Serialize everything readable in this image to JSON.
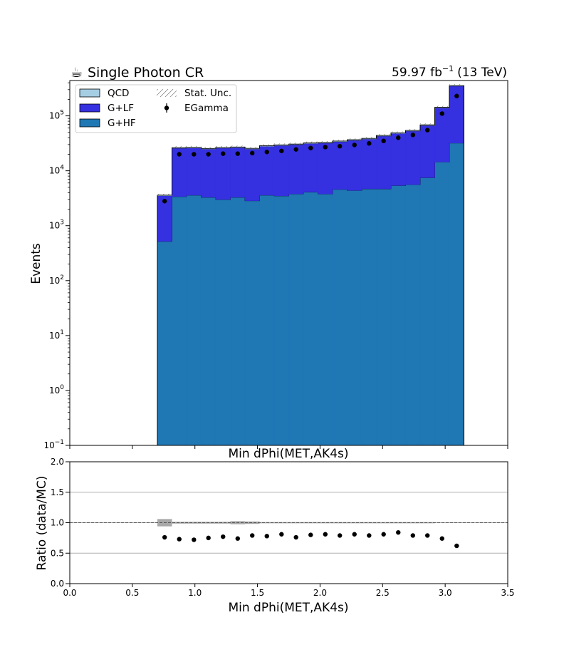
{
  "header": {
    "left_title": "Single Photon CR",
    "left_icon": "coffee-icon",
    "lumi_value": "59.97",
    "lumi_unit_base": "fb",
    "lumi_unit_sup": "−1",
    "energy": "(13 TeV)"
  },
  "chart_data": [
    {
      "type": "bar",
      "stacked": true,
      "xlabel": "Min dPhi(MET,AK4s)",
      "ylabel": "Events",
      "yscale": "log",
      "xlim": [
        0.0,
        3.5
      ],
      "ylim": [
        0.1,
        440000
      ],
      "y_ticks": [
        {
          "value": 0.1,
          "base": "10",
          "exp": "−1"
        },
        {
          "value": 1,
          "base": "10",
          "exp": "0"
        },
        {
          "value": 10,
          "base": "10",
          "exp": "1"
        },
        {
          "value": 100,
          "base": "10",
          "exp": "2"
        },
        {
          "value": 1000,
          "base": "10",
          "exp": "3"
        },
        {
          "value": 10000,
          "base": "10",
          "exp": "4"
        },
        {
          "value": 100000,
          "base": "10",
          "exp": "5"
        }
      ],
      "x_tick_values": [
        0.0,
        0.5,
        1.0,
        1.5,
        2.0,
        2.5,
        3.0,
        3.5
      ],
      "bin_edges": [
        0.7,
        0.8167,
        0.9333,
        1.05,
        1.1667,
        1.2833,
        1.4,
        1.5167,
        1.6333,
        1.75,
        1.8667,
        1.9833,
        2.1,
        2.2167,
        2.3333,
        2.45,
        2.5667,
        2.6833,
        2.8,
        2.9167,
        3.0333,
        3.15
      ],
      "series": [
        {
          "name": "G+HF",
          "color": "#1f77b4",
          "values": [
            520,
            3400,
            3600,
            3300,
            3000,
            3300,
            2850,
            3600,
            3500,
            3800,
            4100,
            3800,
            4600,
            4400,
            4700,
            4700,
            5400,
            5600,
            7500,
            14500,
            32000
          ]
        },
        {
          "name": "G+LF",
          "color": "#3530e0",
          "values": [
            3000,
            22500,
            22500,
            21700,
            23000,
            23200,
            22150,
            24400,
            25500,
            26200,
            27400,
            28200,
            29400,
            31600,
            33300,
            38300,
            42600,
            47400,
            59500,
            125500,
            318000
          ]
        },
        {
          "name": "QCD",
          "color": "#a6cee3",
          "values": [
            80,
            500,
            600,
            500,
            600,
            600,
            600,
            600,
            600,
            600,
            700,
            700,
            800,
            800,
            900,
            1000,
            1000,
            1200,
            1500,
            3000,
            6000
          ]
        }
      ],
      "data_points": {
        "name": "EGamma",
        "x": [
          0.758,
          0.875,
          0.992,
          1.108,
          1.225,
          1.342,
          1.458,
          1.575,
          1.692,
          1.808,
          1.925,
          2.042,
          2.158,
          2.275,
          2.392,
          2.508,
          2.625,
          2.742,
          2.858,
          2.975,
          3.092
        ],
        "y": [
          2800,
          20000,
          20000,
          20000,
          20500,
          20500,
          21000,
          22000,
          23000,
          24500,
          26000,
          27000,
          28000,
          29500,
          31500,
          35000,
          40000,
          45000,
          55000,
          110000,
          230000
        ]
      },
      "legend": {
        "placement": "top-left",
        "entries": [
          "QCD",
          "G+LF",
          "G+HF",
          "Stat. Unc.",
          "EGamma"
        ]
      }
    },
    {
      "type": "scatter",
      "xlabel": "Min dPhi(MET,AK4s)",
      "ylabel": "Ratio (data/MC)",
      "xlim": [
        0.0,
        3.5
      ],
      "ylim": [
        0.0,
        2.0
      ],
      "x_ticks": [
        "0.0",
        "0.5",
        "1.0",
        "1.5",
        "2.0",
        "2.5",
        "3.0",
        "3.5"
      ],
      "y_ticks": [
        "0.0",
        "0.5",
        "1.0",
        "1.5",
        "2.0"
      ],
      "y_tick_values": [
        0.0,
        0.5,
        1.0,
        1.5,
        2.0
      ],
      "grid": "y",
      "reference_line": 1.0,
      "x": [
        0.758,
        0.875,
        0.992,
        1.108,
        1.225,
        1.342,
        1.458,
        1.575,
        1.692,
        1.808,
        1.925,
        2.042,
        2.158,
        2.275,
        2.392,
        2.508,
        2.625,
        2.742,
        2.858,
        2.975,
        3.092
      ],
      "y": [
        0.76,
        0.73,
        0.72,
        0.75,
        0.77,
        0.74,
        0.79,
        0.78,
        0.81,
        0.76,
        0.8,
        0.81,
        0.79,
        0.81,
        0.79,
        0.81,
        0.84,
        0.79,
        0.79,
        0.74,
        0.62
      ],
      "unc_band": [
        0.06,
        0.015,
        0.015,
        0.015,
        0.015,
        0.025,
        0.02,
        0.01,
        0.01,
        0.01,
        0.01,
        0.01,
        0.01,
        0.01,
        0.01,
        0.01,
        0.01,
        0.01,
        0.01,
        0.005,
        0.005
      ]
    }
  ]
}
